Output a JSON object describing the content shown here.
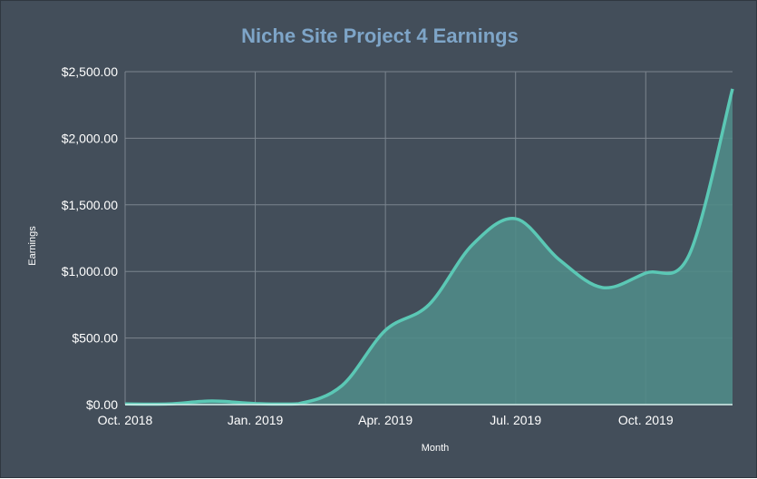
{
  "chart_data": {
    "type": "area",
    "title": "Niche Site Project 4 Earnings",
    "xlabel": "Month",
    "ylabel": "Earnings",
    "x": [
      "2018-10",
      "2018-11",
      "2018-12",
      "2019-01",
      "2019-02",
      "2019-03",
      "2019-04",
      "2019-05",
      "2019-06",
      "2019-07",
      "2019-08",
      "2019-09",
      "2019-10",
      "2019-11",
      "2019-12"
    ],
    "values": [
      5,
      5,
      27,
      8,
      7,
      143,
      558,
      749,
      1199,
      1396,
      1090,
      879,
      988,
      1124,
      2371
    ],
    "x_tick_labels": [
      "Oct. 2018",
      "Jan. 2019",
      "Apr. 2019",
      "Jul. 2019",
      "Oct. 2019"
    ],
    "x_tick_index": [
      0,
      3,
      6,
      9,
      12
    ],
    "y_ticks": [
      0,
      500,
      1000,
      1500,
      2000,
      2500
    ],
    "y_tick_labels": [
      "$0.00",
      "$500.00",
      "$1,000.00",
      "$1,500.00",
      "$2,000.00",
      "$2,500.00"
    ],
    "ylim": [
      0,
      2500
    ],
    "grid": true,
    "legend": "none",
    "colors": {
      "background": "#434e5a",
      "line": "#5bc8b5",
      "fill": "#508b87",
      "grid": "#7b848e",
      "title": "#7ea5c8"
    }
  }
}
